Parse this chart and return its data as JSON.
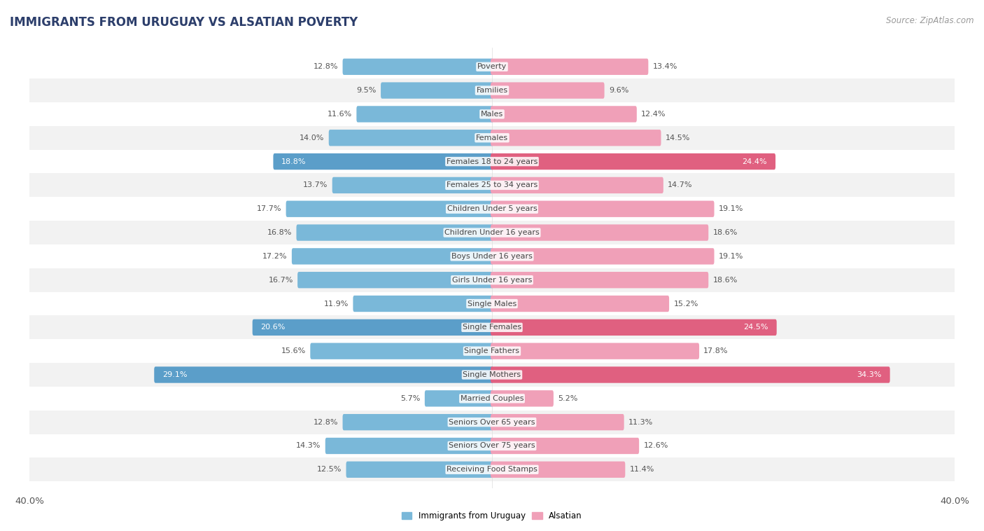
{
  "title": "IMMIGRANTS FROM URUGUAY VS ALSATIAN POVERTY",
  "source": "Source: ZipAtlas.com",
  "categories": [
    "Poverty",
    "Families",
    "Males",
    "Females",
    "Females 18 to 24 years",
    "Females 25 to 34 years",
    "Children Under 5 years",
    "Children Under 16 years",
    "Boys Under 16 years",
    "Girls Under 16 years",
    "Single Males",
    "Single Females",
    "Single Fathers",
    "Single Mothers",
    "Married Couples",
    "Seniors Over 65 years",
    "Seniors Over 75 years",
    "Receiving Food Stamps"
  ],
  "left_values": [
    12.8,
    9.5,
    11.6,
    14.0,
    18.8,
    13.7,
    17.7,
    16.8,
    17.2,
    16.7,
    11.9,
    20.6,
    15.6,
    29.1,
    5.7,
    12.8,
    14.3,
    12.5
  ],
  "right_values": [
    13.4,
    9.6,
    12.4,
    14.5,
    24.4,
    14.7,
    19.1,
    18.6,
    19.1,
    18.6,
    15.2,
    24.5,
    17.8,
    34.3,
    5.2,
    11.3,
    12.6,
    11.4
  ],
  "left_color": "#7ab8d9",
  "right_color": "#f0a0b8",
  "left_label": "Immigrants from Uruguay",
  "right_label": "Alsatian",
  "xlim": 40.0,
  "page_background": "#ffffff",
  "row_odd_bg": "#f2f2f2",
  "row_even_bg": "#ffffff",
  "title_fontsize": 12,
  "source_fontsize": 8.5,
  "axis_fontsize": 9.5,
  "label_fontsize": 8,
  "value_fontsize": 8,
  "bar_height": 0.45,
  "highlight_indices": [
    4,
    11,
    13
  ],
  "highlight_left_color": "#5b9ec9",
  "highlight_right_color": "#e06080",
  "normal_value_color": "#555555",
  "highlight_value_color": "#ffffff"
}
